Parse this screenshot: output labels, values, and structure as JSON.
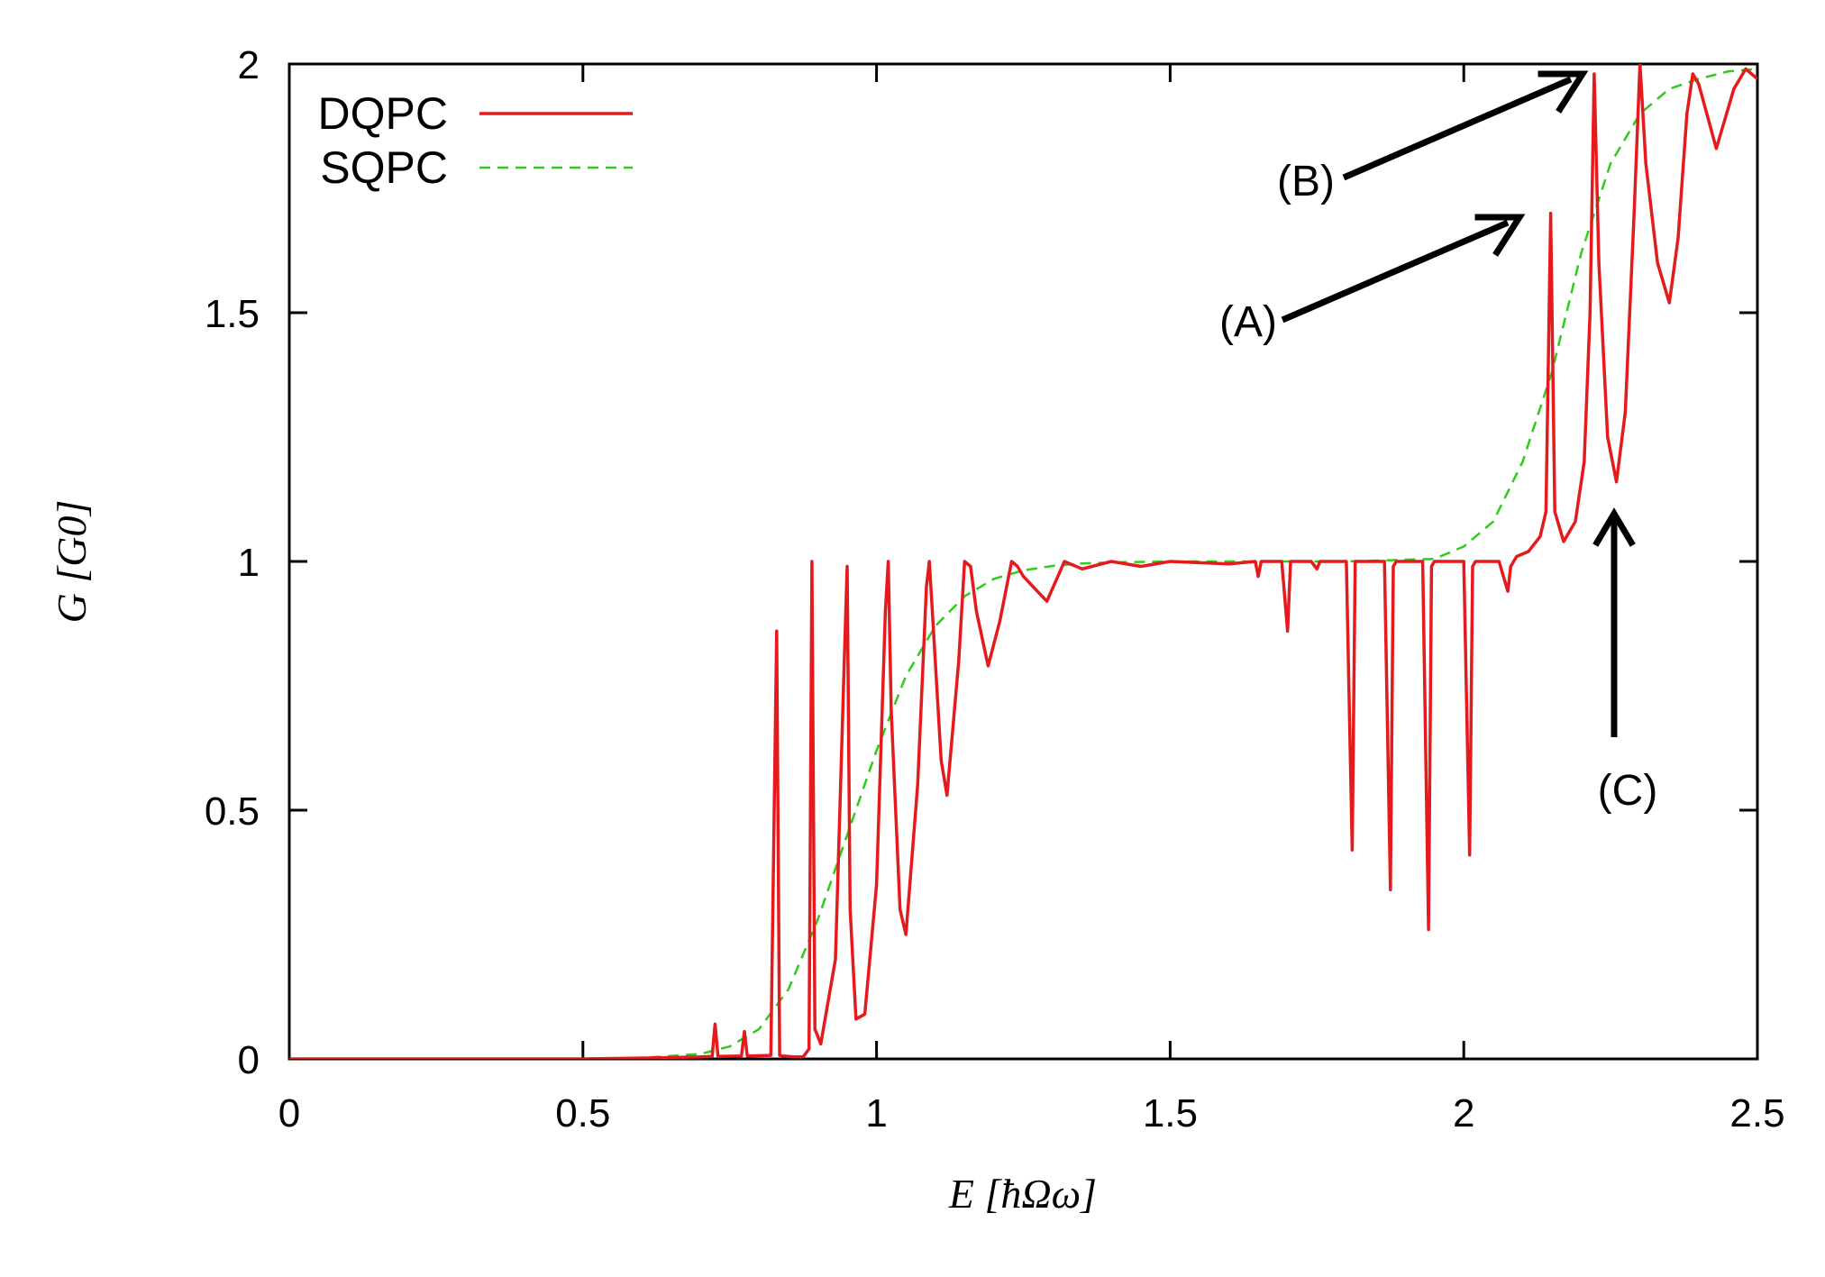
{
  "chart_data": {
    "type": "line",
    "xlabel": "E [ħΩω]",
    "ylabel": "G [G0]",
    "xlim": [
      0,
      2.5
    ],
    "ylim": [
      0,
      2
    ],
    "xticks": [
      "0",
      "0.5",
      "1",
      "1.5",
      "2",
      "2.5"
    ],
    "yticks": [
      "0",
      "0.5",
      "1",
      "1.5",
      "2"
    ],
    "grid": false,
    "legend_position": "top-left",
    "series": [
      {
        "name": "DQPC",
        "color": "#e41a1c",
        "style": "solid",
        "x": [
          0,
          0.5,
          0.62,
          0.7,
          0.72,
          0.725,
          0.73,
          0.77,
          0.775,
          0.78,
          0.82,
          0.83,
          0.835,
          0.84,
          0.86,
          0.875,
          0.885,
          0.89,
          0.895,
          0.905,
          0.93,
          0.945,
          0.95,
          0.955,
          0.965,
          0.98,
          1.0,
          1.015,
          1.02,
          1.025,
          1.04,
          1.05,
          1.07,
          1.085,
          1.09,
          1.095,
          1.11,
          1.12,
          1.14,
          1.15,
          1.16,
          1.17,
          1.19,
          1.21,
          1.23,
          1.24,
          1.25,
          1.29,
          1.32,
          1.35,
          1.4,
          1.45,
          1.5,
          1.6,
          1.645,
          1.65,
          1.655,
          1.69,
          1.7,
          1.705,
          1.74,
          1.75,
          1.755,
          1.8,
          1.81,
          1.815,
          1.82,
          1.865,
          1.875,
          1.88,
          1.885,
          1.93,
          1.94,
          1.945,
          1.95,
          2.0,
          2.01,
          2.015,
          2.02,
          2.06,
          2.075,
          2.08,
          2.09,
          2.11,
          2.13,
          2.14,
          2.148,
          2.155,
          2.17,
          2.19,
          2.205,
          2.215,
          2.222,
          2.23,
          2.245,
          2.26,
          2.275,
          2.29,
          2.3,
          2.31,
          2.33,
          2.35,
          2.365,
          2.38,
          2.39,
          2.4,
          2.43,
          2.46,
          2.48,
          2.5
        ],
        "y": [
          0,
          0,
          0.002,
          0.004,
          0.005,
          0.07,
          0.005,
          0.006,
          0.055,
          0.006,
          0.007,
          0.86,
          0.007,
          0.006,
          0.004,
          0.004,
          0.02,
          1.0,
          0.06,
          0.03,
          0.2,
          0.8,
          0.99,
          0.3,
          0.08,
          0.09,
          0.35,
          0.9,
          1.0,
          0.7,
          0.3,
          0.25,
          0.55,
          0.95,
          1.0,
          0.9,
          0.6,
          0.53,
          0.8,
          1.0,
          0.99,
          0.9,
          0.79,
          0.88,
          1.0,
          0.99,
          0.97,
          0.92,
          1.0,
          0.985,
          1.0,
          0.99,
          1.0,
          0.995,
          1.0,
          0.97,
          1.0,
          1.0,
          0.86,
          1.0,
          1.0,
          0.985,
          1.0,
          1.0,
          0.42,
          1.0,
          1.0,
          1.0,
          0.34,
          0.99,
          1.0,
          1.0,
          0.26,
          0.99,
          1.0,
          1.0,
          0.41,
          0.99,
          1.0,
          1.0,
          0.94,
          0.99,
          1.01,
          1.02,
          1.05,
          1.1,
          1.7,
          1.1,
          1.04,
          1.08,
          1.2,
          1.5,
          1.98,
          1.6,
          1.25,
          1.16,
          1.3,
          1.7,
          2.0,
          1.8,
          1.6,
          1.52,
          1.65,
          1.9,
          1.98,
          1.96,
          1.83,
          1.95,
          1.99,
          1.97
        ]
      },
      {
        "name": "SQPC",
        "color": "#2ecc1a",
        "style": "dashed",
        "x": [
          0,
          0.5,
          0.6,
          0.7,
          0.75,
          0.8,
          0.85,
          0.9,
          0.95,
          1.0,
          1.05,
          1.1,
          1.15,
          1.2,
          1.25,
          1.3,
          1.35,
          1.4,
          1.5,
          1.8,
          1.95,
          2.0,
          2.05,
          2.1,
          2.15,
          2.2,
          2.25,
          2.3,
          2.35,
          2.4,
          2.45,
          2.5
        ],
        "y": [
          0,
          0,
          0.002,
          0.01,
          0.025,
          0.06,
          0.14,
          0.28,
          0.45,
          0.62,
          0.77,
          0.87,
          0.93,
          0.965,
          0.982,
          0.991,
          0.996,
          0.998,
          1.0,
          1.0,
          1.005,
          1.03,
          1.08,
          1.2,
          1.38,
          1.62,
          1.8,
          1.9,
          1.95,
          1.97,
          1.985,
          1.99
        ]
      }
    ],
    "annotations": [
      {
        "label": "(A)"
      },
      {
        "label": "(B)"
      },
      {
        "label": "(C)"
      }
    ]
  }
}
